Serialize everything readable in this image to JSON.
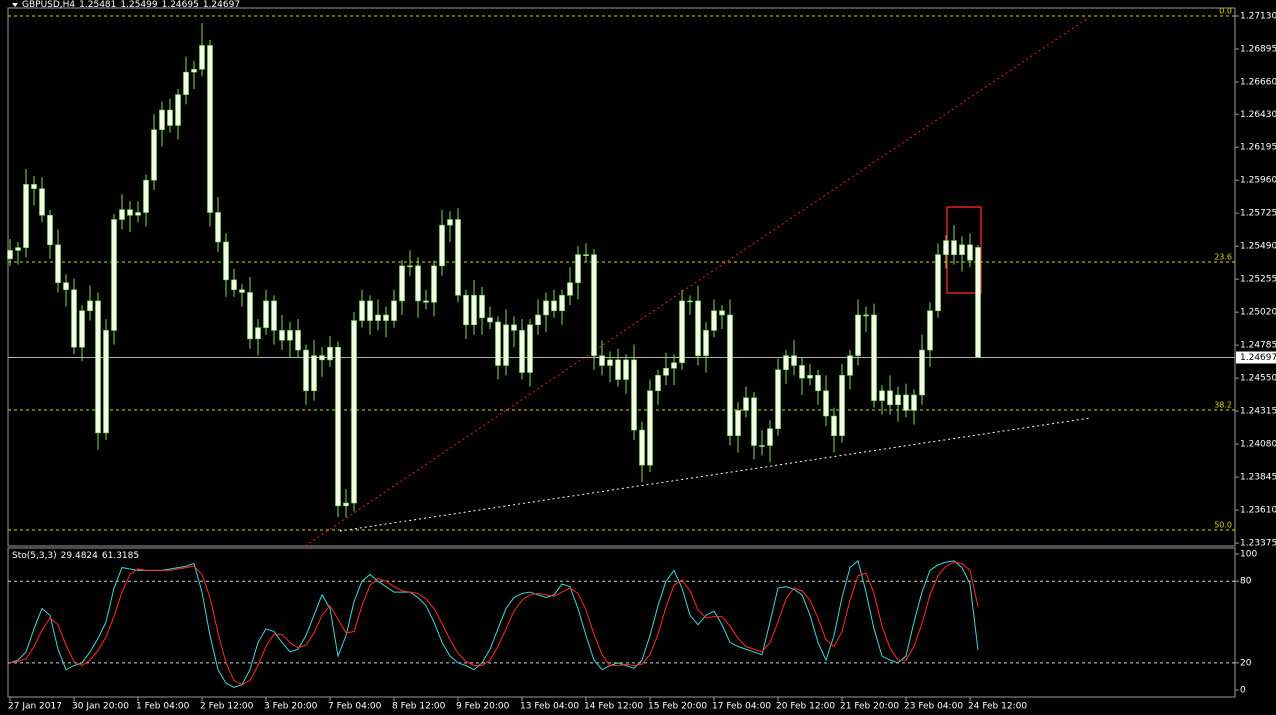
{
  "chart_data": [
    {
      "type": "candlestick",
      "title": "GBPUSD,H4",
      "categories": [
        "27 Jan 2017",
        null,
        null,
        null,
        null,
        null,
        null,
        null,
        "30 Jan 20:00",
        null,
        null,
        null,
        null,
        null,
        null,
        null,
        "1 Feb 04:00",
        null,
        null,
        null,
        null,
        null,
        null,
        null,
        "2 Feb 12:00",
        null,
        null,
        null,
        null,
        null,
        null,
        null,
        "3 Feb 20:00",
        null,
        null,
        null,
        null,
        null,
        null,
        null,
        "7 Feb 04:00",
        null,
        null,
        null,
        null,
        null,
        null,
        null,
        "8 Feb 12:00",
        null,
        null,
        null,
        null,
        null,
        null,
        null,
        "9 Feb 20:00",
        null,
        null,
        null,
        null,
        null,
        null,
        null,
        "13 Feb 04:00",
        null,
        null,
        null,
        null,
        null,
        null,
        null,
        "14 Feb 12:00",
        null,
        null,
        null,
        null,
        null,
        null,
        null,
        "15 Feb 20:00",
        null,
        null,
        null,
        null,
        null,
        null,
        null,
        "17 Feb 04:00",
        null,
        null,
        null,
        null,
        null,
        null,
        null,
        "20 Feb 12:00",
        null,
        null,
        null,
        null,
        null,
        null,
        null,
        "21 Feb 20:00",
        null,
        null,
        null,
        null,
        null,
        null,
        null,
        "23 Feb 04:00",
        null,
        null,
        null,
        null,
        null,
        null,
        null,
        "24 Feb 12:00",
        null
      ],
      "open": [
        1.254,
        1.2546,
        1.2548,
        1.2593,
        1.259,
        1.2571,
        1.255,
        1.2523,
        1.2518,
        1.2477,
        1.2503,
        1.251,
        1.2416,
        1.2489,
        1.2568,
        1.2575,
        1.2571,
        1.2573,
        1.2596,
        1.2632,
        1.2646,
        1.2635,
        1.2657,
        1.2673,
        1.2675,
        1.2692,
        1.2573,
        1.2552,
        1.2525,
        1.2518,
        1.2516,
        1.2483,
        1.2491,
        1.251,
        1.2489,
        1.2482,
        1.2489,
        1.2475,
        1.2446,
        1.2471,
        1.2468,
        1.2477,
        1.2364,
        1.2366,
        1.2496,
        1.251,
        1.2496,
        1.25,
        1.2496,
        1.251,
        1.2535,
        1.2535,
        1.251,
        1.2509,
        1.2535,
        1.2564,
        1.2568,
        1.2514,
        1.2493,
        1.2514,
        1.2498,
        1.2495,
        1.2464,
        1.2493,
        1.2489,
        1.2459,
        1.2493,
        1.25,
        1.251,
        1.2503,
        1.2514,
        1.2523,
        1.2543,
        1.2543,
        1.2471,
        1.2464,
        1.2468,
        1.2454,
        1.2468,
        1.2418,
        1.2393,
        1.2446,
        1.2457,
        1.2462,
        1.2466,
        1.251,
        1.251,
        1.2471,
        1.2489,
        1.2503,
        1.25,
        1.2414,
        1.2432,
        1.2441,
        1.2407,
        1.2407,
        1.2419,
        1.2461,
        1.2471,
        1.2464,
        1.2455,
        1.2457,
        1.2446,
        1.2428,
        1.2414,
        1.2457,
        1.2471,
        1.25,
        1.25,
        1.2439,
        1.2446,
        1.2436,
        1.2443,
        1.2432,
        1.2443,
        1.2475,
        1.2503,
        1.2543,
        1.2553,
        1.2543,
        1.255,
        1.25481
      ],
      "high": [
        1.2554,
        1.2552,
        1.2604,
        1.2599,
        1.2598,
        1.2575,
        1.2561,
        1.2529,
        1.2526,
        1.2507,
        1.2521,
        1.2516,
        1.2497,
        1.2572,
        1.2586,
        1.2581,
        1.2581,
        1.26,
        1.2643,
        1.2652,
        1.2654,
        1.2661,
        1.2684,
        1.2681,
        1.2708,
        1.2696,
        1.2584,
        1.2558,
        1.2533,
        1.2522,
        1.2527,
        1.2497,
        1.2518,
        1.2514,
        1.25,
        1.2495,
        1.2497,
        1.2479,
        1.2482,
        1.2477,
        1.2485,
        1.2481,
        1.2376,
        1.2502,
        1.2518,
        1.2514,
        1.2511,
        1.2506,
        1.2518,
        1.2539,
        1.2546,
        1.2541,
        1.2518,
        1.2539,
        1.2575,
        1.2574,
        1.2576,
        1.2518,
        1.2525,
        1.252,
        1.2506,
        1.2499,
        1.2504,
        1.2499,
        1.2497,
        1.2497,
        1.2511,
        1.2516,
        1.2518,
        1.2518,
        1.2534,
        1.2549,
        1.2551,
        1.2547,
        1.2482,
        1.2474,
        1.2476,
        1.2472,
        1.2479,
        1.2424,
        1.2454,
        1.2461,
        1.2473,
        1.2472,
        1.2518,
        1.2514,
        1.2521,
        1.2495,
        1.2511,
        1.2507,
        1.2511,
        1.2438,
        1.2449,
        1.2445,
        1.2418,
        1.2425,
        1.2469,
        1.2475,
        1.2482,
        1.247,
        1.2465,
        1.2461,
        1.2457,
        1.2434,
        1.2465,
        1.2475,
        1.2511,
        1.2506,
        1.2508,
        1.245,
        1.2457,
        1.2449,
        1.2451,
        1.2447,
        1.2486,
        1.2509,
        1.2551,
        1.2557,
        1.2564,
        1.2556,
        1.2558,
        1.25499
      ],
      "low": [
        1.2535,
        1.2536,
        1.2541,
        1.2578,
        1.2566,
        1.254,
        1.2516,
        1.2506,
        1.2472,
        1.2467,
        1.2496,
        1.2404,
        1.2411,
        1.2479,
        1.2561,
        1.2559,
        1.2566,
        1.2563,
        1.2589,
        1.262,
        1.263,
        1.2625,
        1.265,
        1.2661,
        1.267,
        1.2563,
        1.2545,
        1.2513,
        1.2513,
        1.2506,
        1.2476,
        1.2471,
        1.2486,
        1.2479,
        1.2475,
        1.247,
        1.247,
        1.2436,
        1.2439,
        1.2456,
        1.2463,
        1.2356,
        1.2356,
        1.236,
        1.2491,
        1.2486,
        1.2489,
        1.2484,
        1.2491,
        1.25,
        1.2528,
        1.2498,
        1.2504,
        1.2499,
        1.2528,
        1.2552,
        1.2509,
        1.2483,
        1.2486,
        1.2486,
        1.249,
        1.2454,
        1.2457,
        1.2477,
        1.2454,
        1.2449,
        1.2486,
        1.2488,
        1.2498,
        1.2493,
        1.2507,
        1.2511,
        1.2538,
        1.2461,
        1.2457,
        1.2452,
        1.2449,
        1.2444,
        1.2411,
        1.2381,
        1.2388,
        1.2436,
        1.245,
        1.245,
        1.2461,
        1.25,
        1.2464,
        1.2459,
        1.2484,
        1.249,
        1.2407,
        1.2402,
        1.2427,
        1.2397,
        1.24,
        1.2395,
        1.2414,
        1.2451,
        1.2457,
        1.2443,
        1.245,
        1.2436,
        1.2421,
        1.2402,
        1.2409,
        1.2447,
        1.2464,
        1.2488,
        1.2434,
        1.2429,
        1.2429,
        1.2424,
        1.2427,
        1.2422,
        1.2436,
        1.2463,
        1.2498,
        1.2533,
        1.2536,
        1.2531,
        1.2534,
        1.24695
      ],
      "close": [
        1.2546,
        1.2548,
        1.2593,
        1.259,
        1.2571,
        1.255,
        1.2523,
        1.2518,
        1.2477,
        1.2503,
        1.251,
        1.2416,
        1.2489,
        1.2568,
        1.2575,
        1.2571,
        1.2573,
        1.2596,
        1.2632,
        1.2646,
        1.2635,
        1.2657,
        1.2673,
        1.2675,
        1.2692,
        1.2573,
        1.2552,
        1.2525,
        1.2518,
        1.2516,
        1.2483,
        1.2491,
        1.251,
        1.2489,
        1.2482,
        1.2489,
        1.2475,
        1.2446,
        1.2471,
        1.2468,
        1.2477,
        1.2364,
        1.2366,
        1.2496,
        1.251,
        1.2496,
        1.25,
        1.2496,
        1.251,
        1.2535,
        1.2535,
        1.251,
        1.2509,
        1.2535,
        1.2564,
        1.2568,
        1.2514,
        1.2493,
        1.2514,
        1.2498,
        1.2495,
        1.2464,
        1.2493,
        1.2489,
        1.2459,
        1.2493,
        1.25,
        1.251,
        1.2503,
        1.2514,
        1.2523,
        1.2543,
        1.2543,
        1.2471,
        1.2464,
        1.2468,
        1.2454,
        1.2468,
        1.2418,
        1.2393,
        1.2446,
        1.2457,
        1.2462,
        1.2466,
        1.251,
        1.251,
        1.2471,
        1.2489,
        1.2503,
        1.25,
        1.2414,
        1.2432,
        1.2441,
        1.2407,
        1.2407,
        1.2419,
        1.2461,
        1.2471,
        1.2464,
        1.2455,
        1.2457,
        1.2446,
        1.2428,
        1.2414,
        1.2457,
        1.2471,
        1.25,
        1.25,
        1.2439,
        1.2446,
        1.2436,
        1.2443,
        1.2432,
        1.2443,
        1.2475,
        1.2503,
        1.2543,
        1.2553,
        1.2543,
        1.255,
        1.2539,
        1.24697
      ],
      "body_color": "#f2ffe6",
      "wick_color": "#7ddc55",
      "ylim": [
        1.23354,
        1.27187
      ],
      "yticks": [
        {
          "value": 1.2713,
          "label": "1.27130"
        },
        1.26895,
        {
          "value": 1.2666,
          "label": "1.26660"
        },
        {
          "value": 1.2643,
          "label": "1.26430"
        },
        1.26195,
        {
          "value": 1.2596,
          "label": "1.25960"
        },
        1.25725,
        {
          "value": 1.2549,
          "label": "1.25490"
        },
        1.25255,
        {
          "value": 1.2502,
          "label": "1.25020"
        },
        1.24785,
        {
          "value": 1.2455,
          "label": "1.24550"
        },
        1.24315,
        {
          "value": 1.2408,
          "label": "1.24080"
        },
        1.23845,
        {
          "value": 1.2361,
          "label": "1.23610"
        },
        1.23375
      ],
      "current_price": {
        "value": 1.24697,
        "label": "1.24697"
      },
      "fib_levels": [
        {
          "value": 1.2713,
          "label": "0.0"
        },
        {
          "value": 1.25377,
          "label": "23.6"
        },
        {
          "value": 1.24323,
          "label": "38.2"
        },
        {
          "value": 1.23468,
          "label": "50.0"
        }
      ],
      "fib_color": "#d4d400"
    },
    {
      "type": "line",
      "title": "Sto(5,3,3)",
      "series": [
        {
          "color": "#3fd6d6",
          "values": [
            20,
            22,
            28,
            45,
            60,
            55,
            30,
            15,
            18,
            20,
            28,
            38,
            50,
            75,
            90,
            89,
            88,
            88,
            88,
            88,
            89,
            90,
            91,
            93,
            72,
            40,
            15,
            5,
            2,
            4,
            15,
            35,
            45,
            43,
            35,
            28,
            30,
            40,
            55,
            70,
            60,
            25,
            40,
            65,
            80,
            85,
            80,
            76,
            72,
            72,
            72,
            68,
            62,
            50,
            35,
            25,
            20,
            18,
            15,
            20,
            30,
            45,
            60,
            68,
            71,
            72,
            70,
            68,
            70,
            78,
            76,
            60,
            40,
            22,
            15,
            18,
            20,
            18,
            16,
            22,
            40,
            62,
            80,
            88,
            75,
            55,
            48,
            55,
            58,
            48,
            35,
            32,
            30,
            28,
            26,
            50,
            75,
            76,
            74,
            70,
            55,
            35,
            22,
            40,
            68,
            90,
            95,
            72,
            45,
            25,
            22,
            20,
            25,
            50,
            72,
            88,
            92,
            94,
            95,
            90,
            78,
            29.4824
          ]
        },
        {
          "color": "#ff2a2a",
          "values": [
            20,
            21,
            23,
            32,
            44,
            53,
            48,
            33,
            21,
            18,
            22,
            29,
            39,
            54,
            72,
            85,
            89,
            88,
            88,
            88,
            88,
            89,
            90,
            91,
            85,
            68,
            42,
            20,
            7,
            4,
            7,
            18,
            32,
            41,
            41,
            35,
            31,
            33,
            42,
            55,
            62,
            52,
            42,
            43,
            62,
            77,
            82,
            80,
            76,
            73,
            72,
            71,
            67,
            60,
            49,
            37,
            27,
            21,
            18,
            18,
            22,
            32,
            45,
            58,
            66,
            70,
            71,
            70,
            69,
            72,
            75,
            71,
            59,
            41,
            26,
            18,
            18,
            19,
            18,
            19,
            26,
            41,
            61,
            77,
            81,
            73,
            59,
            53,
            54,
            54,
            47,
            38,
            32,
            30,
            28,
            35,
            50,
            67,
            75,
            73,
            66,
            53,
            37,
            32,
            43,
            66,
            84,
            86,
            71,
            47,
            31,
            22,
            22,
            32,
            49,
            70,
            84,
            91,
            94,
            93,
            88,
            61.3185
          ]
        }
      ],
      "ylim": [
        -5.1,
        104.4
      ],
      "yticks": [
        0,
        20,
        80,
        100
      ],
      "levels": [
        20,
        80
      ]
    }
  ]
}
